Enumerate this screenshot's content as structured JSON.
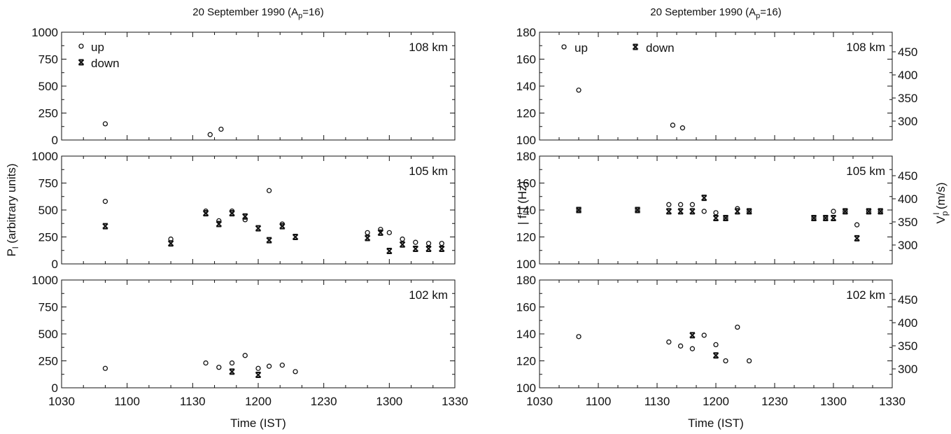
{
  "chart_data": [
    {
      "panel": "left",
      "type": "scatter",
      "title": "20 September 1990 (A",
      "title_sub": "p",
      "title_tail": "=16)",
      "xlabel": "Time (IST)",
      "ylabel": "P",
      "ylabel_sub": "l",
      "ylabel_tail": " (arbitrary units)",
      "x_ticks": [
        "1030",
        "1100",
        "1130",
        "1200",
        "1230",
        "1300",
        "1330"
      ],
      "legend": {
        "up": "up",
        "down": "down",
        "placement": "top-left"
      },
      "subplots": [
        {
          "label": "108 km",
          "ylim": [
            0,
            1000
          ],
          "y_ticks": [
            "0",
            "250",
            "500",
            "750",
            "1000"
          ],
          "up": [
            [
              "1050",
              150
            ],
            [
              "1138",
              50
            ],
            [
              "1143",
              100
            ]
          ],
          "down": []
        },
        {
          "label": "105 km",
          "ylim": [
            0,
            1000
          ],
          "y_ticks": [
            "0",
            "250",
            "500",
            "750",
            "1000"
          ],
          "up": [
            [
              "1050",
              580
            ],
            [
              "1120",
              230
            ],
            [
              "1136",
              490
            ],
            [
              "1142",
              400
            ],
            [
              "1148",
              490
            ],
            [
              "1154",
              410
            ],
            [
              "1205",
              680
            ],
            [
              "1211",
              370
            ],
            [
              "1250",
              290
            ],
            [
              "1256",
              320
            ],
            [
              "1300",
              290
            ],
            [
              "1306",
              230
            ],
            [
              "1312",
              200
            ],
            [
              "1318",
              190
            ],
            [
              "1324",
              190
            ]
          ],
          "down": [
            [
              "1050",
              350
            ],
            [
              "1120",
              190
            ],
            [
              "1136",
              470
            ],
            [
              "1142",
              370
            ],
            [
              "1148",
              470
            ],
            [
              "1154",
              440
            ],
            [
              "1200",
              330
            ],
            [
              "1205",
              220
            ],
            [
              "1211",
              350
            ],
            [
              "1217",
              250
            ],
            [
              "1250",
              240
            ],
            [
              "1256",
              290
            ],
            [
              "1300",
              120
            ],
            [
              "1306",
              180
            ],
            [
              "1312",
              140
            ],
            [
              "1318",
              140
            ],
            [
              "1324",
              140
            ]
          ]
        },
        {
          "label": "102 km",
          "ylim": [
            0,
            1000
          ],
          "y_ticks": [
            "0",
            "250",
            "500",
            "750",
            "1000"
          ],
          "up": [
            [
              "1050",
              180
            ],
            [
              "1136",
              230
            ],
            [
              "1142",
              190
            ],
            [
              "1148",
              230
            ],
            [
              "1154",
              300
            ],
            [
              "1200",
              180
            ],
            [
              "1205",
              200
            ],
            [
              "1211",
              210
            ],
            [
              "1217",
              150
            ]
          ],
          "down": [
            [
              "1148",
              150
            ],
            [
              "1200",
              120
            ]
          ]
        }
      ]
    },
    {
      "panel": "right",
      "type": "scatter",
      "title": "20 September 1990 (A",
      "title_sub": "p",
      "title_tail": "=16)",
      "xlabel": "Time (IST)",
      "ylabel": "| f",
      "ylabel_sub": "l",
      "ylabel_tail": " | (Hz)",
      "y2label": "V",
      "y2label_sub": "p",
      "y2label_sup": "l",
      "y2label_tail": " (m/s)",
      "x_ticks": [
        "1030",
        "1100",
        "1130",
        "1200",
        "1230",
        "1300",
        "1330"
      ],
      "legend": {
        "up": "up",
        "down": "down",
        "placement": "top-left"
      },
      "subplots": [
        {
          "label": "108 km",
          "ylim": [
            100,
            180
          ],
          "y_ticks": [
            "100",
            "120",
            "140",
            "160",
            "180"
          ],
          "y2_ticks": [
            "300",
            "350",
            "400",
            "450"
          ],
          "up": [
            [
              "1050",
              137
            ],
            [
              "1138",
              111
            ],
            [
              "1143",
              109
            ]
          ],
          "down": []
        },
        {
          "label": "105 km",
          "ylim": [
            100,
            180
          ],
          "y_ticks": [
            "100",
            "120",
            "140",
            "160",
            "180"
          ],
          "y2_ticks": [
            "300",
            "350",
            "400",
            "450"
          ],
          "up": [
            [
              "1050",
              140
            ],
            [
              "1120",
              140
            ],
            [
              "1136",
              144
            ],
            [
              "1142",
              144
            ],
            [
              "1148",
              144
            ],
            [
              "1154",
              139
            ],
            [
              "1200",
              138
            ],
            [
              "1205",
              134
            ],
            [
              "1211",
              141
            ],
            [
              "1217",
              139
            ],
            [
              "1250",
              134
            ],
            [
              "1256",
              134
            ],
            [
              "1300",
              139
            ],
            [
              "1306",
              139
            ],
            [
              "1312",
              129
            ],
            [
              "1318",
              139
            ],
            [
              "1324",
              139
            ]
          ],
          "down": [
            [
              "1050",
              140
            ],
            [
              "1120",
              140
            ],
            [
              "1136",
              139
            ],
            [
              "1142",
              139
            ],
            [
              "1148",
              139
            ],
            [
              "1154",
              149
            ],
            [
              "1200",
              134
            ],
            [
              "1205",
              134
            ],
            [
              "1211",
              139
            ],
            [
              "1217",
              139
            ],
            [
              "1250",
              134
            ],
            [
              "1256",
              134
            ],
            [
              "1300",
              134
            ],
            [
              "1306",
              139
            ],
            [
              "1312",
              119
            ],
            [
              "1318",
              139
            ],
            [
              "1324",
              139
            ]
          ]
        },
        {
          "label": "102 km",
          "ylim": [
            100,
            180
          ],
          "y_ticks": [
            "100",
            "120",
            "140",
            "160",
            "180"
          ],
          "y2_ticks": [
            "300",
            "350",
            "400",
            "450"
          ],
          "up": [
            [
              "1050",
              138
            ],
            [
              "1136",
              134
            ],
            [
              "1142",
              131
            ],
            [
              "1148",
              129
            ],
            [
              "1154",
              139
            ],
            [
              "1200",
              132
            ],
            [
              "1205",
              120
            ],
            [
              "1211",
              145
            ],
            [
              "1217",
              120
            ]
          ],
          "down": [
            [
              "1148",
              139
            ],
            [
              "1200",
              124
            ]
          ]
        }
      ]
    }
  ]
}
